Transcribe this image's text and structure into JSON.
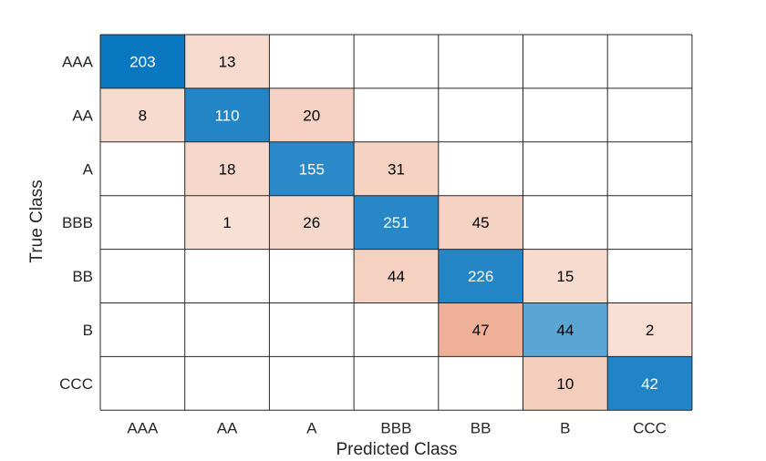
{
  "chart_data": {
    "type": "heatmap",
    "subtype": "confusion-matrix",
    "title": "",
    "xlabel": "Predicted Class",
    "ylabel": "True Class",
    "x_categories": [
      "AAA",
      "AA",
      "A",
      "BBB",
      "BB",
      "B",
      "CCC"
    ],
    "y_categories": [
      "AAA",
      "AA",
      "A",
      "BBB",
      "BB",
      "B",
      "CCC"
    ],
    "values": [
      [
        203,
        13,
        null,
        null,
        null,
        null,
        null
      ],
      [
        8,
        110,
        20,
        null,
        null,
        null,
        null
      ],
      [
        null,
        18,
        155,
        31,
        null,
        null,
        null
      ],
      [
        null,
        1,
        26,
        251,
        45,
        null,
        null
      ],
      [
        null,
        null,
        null,
        44,
        226,
        15,
        null
      ],
      [
        null,
        null,
        null,
        null,
        47,
        44,
        2
      ],
      [
        null,
        null,
        null,
        null,
        null,
        10,
        42
      ]
    ],
    "colors": {
      "diagonal_max": "#0072bd",
      "diagonal_min": "#ffffff",
      "offdiagonal_max": "#d95319",
      "offdiagonal_min": "#ffffff",
      "grid": "#262626",
      "text_dark": "#000000",
      "text_light": "#ffffff"
    },
    "grid": true,
    "legend": "none"
  }
}
